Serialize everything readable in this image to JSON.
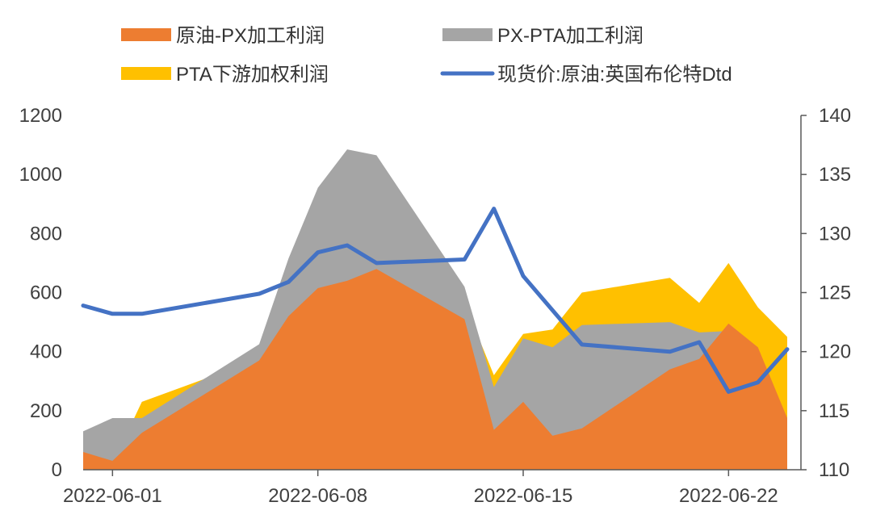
{
  "chart_data": {
    "type": "area",
    "title": "",
    "x_ticks": [
      "2022-06-01",
      "2022-06-08",
      "2022-06-15",
      "2022-06-22"
    ],
    "y_left": {
      "min": 0,
      "max": 1200,
      "ticks": [
        "0",
        "200",
        "400",
        "600",
        "800",
        "1000",
        "1200"
      ]
    },
    "y_right": {
      "min": 110,
      "max": 140,
      "ticks": [
        "110",
        "115",
        "120",
        "125",
        "130",
        "135",
        "140"
      ]
    },
    "legend": {
      "s1": "原油-PX加工利润",
      "s2": "PX-PTA加工利润",
      "s3": "PTA下游加权利润",
      "s4": "现货价:原油:英国布伦特Dtd"
    },
    "colors": {
      "s1": "#ED7D31",
      "s2": "#A5A5A5",
      "s3": "#FFC000",
      "s4": "#4472C4"
    },
    "dates": [
      "2022-05-31",
      "2022-06-01",
      "2022-06-02",
      "2022-06-06",
      "2022-06-07",
      "2022-06-08",
      "2022-06-09",
      "2022-06-10",
      "2022-06-13",
      "2022-06-14",
      "2022-06-15",
      "2022-06-16",
      "2022-06-17",
      "2022-06-20",
      "2022-06-21",
      "2022-06-22",
      "2022-06-23",
      "2022-06-24"
    ],
    "stacked_area_series": [
      {
        "key": "s1",
        "name": "原油-PX加工利润",
        "values": [
          60,
          30,
          125,
          370,
          520,
          615,
          640,
          680,
          510,
          135,
          230,
          115,
          140,
          340,
          375,
          495,
          415,
          175
        ]
      },
      {
        "key": "s2",
        "name": "PX-PTA加工利润",
        "values": [
          70,
          145,
          50,
          55,
          195,
          340,
          445,
          385,
          110,
          145,
          215,
          300,
          350,
          160,
          90,
          -25,
          -50,
          0
        ]
      },
      {
        "key": "s3",
        "name": "PTA下游加权利润",
        "values": [
          -50,
          -155,
          55,
          -50,
          -120,
          -230,
          -360,
          -280,
          -55,
          40,
          15,
          60,
          110,
          150,
          100,
          230,
          185,
          275
        ]
      }
    ],
    "line_series": {
      "key": "s4",
      "name": "现货价:原油:英国布伦特Dtd",
      "axis": "right",
      "values": [
        123.9,
        123.2,
        123.2,
        124.9,
        125.9,
        128.4,
        129.0,
        127.5,
        127.8,
        132.1,
        126.4,
        null,
        120.6,
        120.0,
        120.8,
        116.6,
        117.4,
        120.2
      ]
    }
  }
}
